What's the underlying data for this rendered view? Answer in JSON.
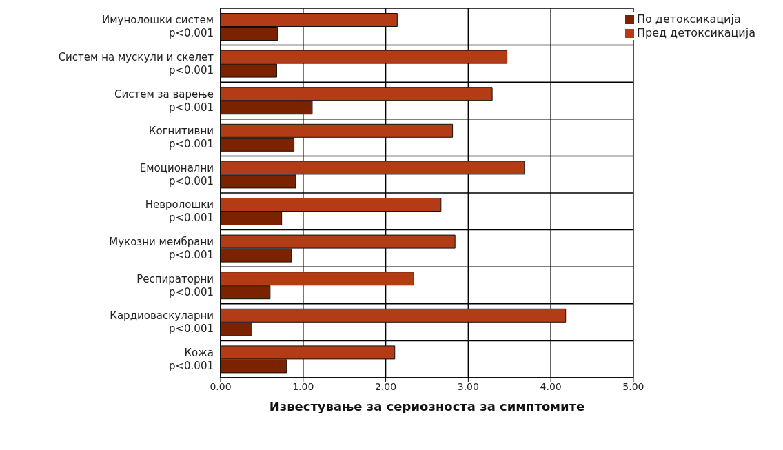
{
  "chart_data": {
    "type": "bar",
    "orientation": "horizontal",
    "xlabel": "Известување за сериозноста за симптомите",
    "categories": [
      "Имунолошки систем\np<0.001",
      "Систем на мускули и скелет\np<0.001",
      "Систем за варење\np<0.001",
      "Когнитивни\np<0.001",
      "Емоционални\np<0.001",
      "Невролошки\np<0.001",
      "Мукозни мембрани\np<0.001",
      "Респираторни\np<0.001",
      "Кардиоваскуларни\np<0.001",
      "Кожа\np<0.001"
    ],
    "series": [
      {
        "name": "Пред детоксикација",
        "color": "#b33c17",
        "values": [
          2.14,
          3.47,
          3.29,
          2.81,
          3.68,
          2.67,
          2.84,
          2.34,
          4.18,
          2.11
        ]
      },
      {
        "name": "По детоксикација",
        "color": "#7b2200",
        "values": [
          0.69,
          0.68,
          1.11,
          0.89,
          0.91,
          0.74,
          0.86,
          0.6,
          0.38,
          0.8
        ]
      }
    ],
    "xlim": [
      0,
      5
    ],
    "xticks": [
      {
        "value": 0,
        "label": "0.00"
      },
      {
        "value": 1,
        "label": "1.00"
      },
      {
        "value": 2,
        "label": "2.00"
      },
      {
        "value": 3,
        "label": "3.00"
      },
      {
        "value": 4,
        "label": "4.00"
      },
      {
        "value": 5,
        "label": "5.00"
      }
    ],
    "grid": true,
    "legend": "top right"
  }
}
